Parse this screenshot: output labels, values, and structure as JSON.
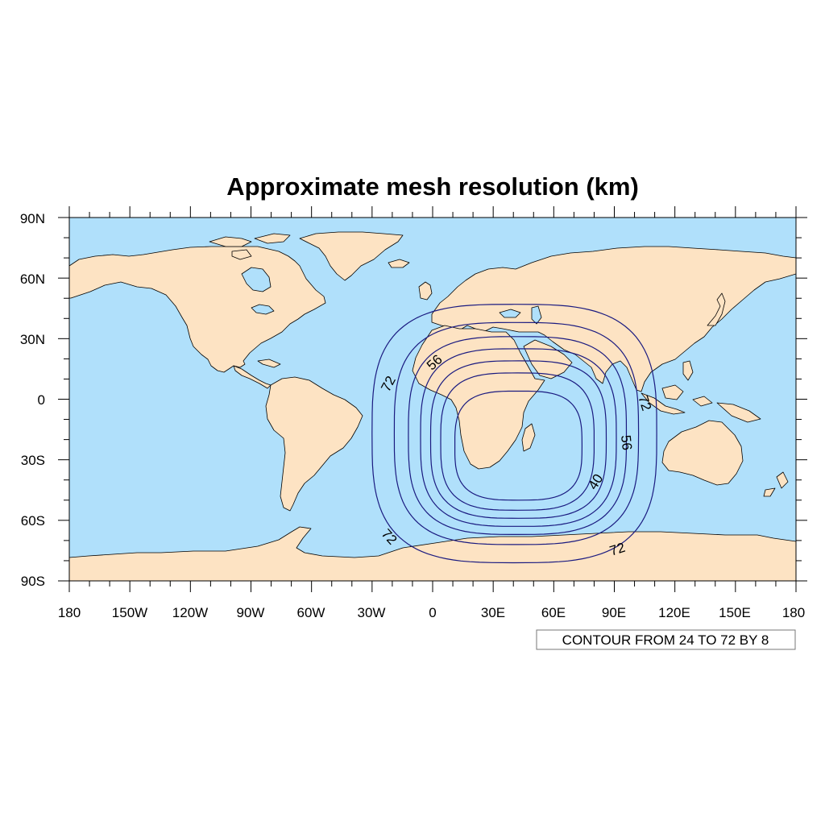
{
  "title": "Approximate mesh resolution (km)",
  "colors": {
    "ocean": "#b0e0fb",
    "land": "#fde3c3",
    "coast": "#000000",
    "contour": "#1a1a80"
  },
  "lat_labels": [
    "90N",
    "60N",
    "30N",
    "0",
    "30S",
    "60S",
    "90S"
  ],
  "lon_labels": [
    "180",
    "150W",
    "120W",
    "90W",
    "60W",
    "30W",
    "0",
    "30E",
    "60E",
    "90E",
    "120E",
    "150E",
    "180"
  ],
  "contour_info": "CONTOUR FROM 24 TO 72 BY 8",
  "contour_labels": [
    "72",
    "56",
    "72",
    "56",
    "40",
    "72",
    "72"
  ],
  "map_data": {
    "projection": "cylindrical-equidistant",
    "lon_range": [
      -180,
      180
    ],
    "lat_range": [
      -90,
      90
    ],
    "contour_center": {
      "lon": 40,
      "lat": -30
    },
    "contour_levels": [
      {
        "value": 24,
        "lon_min": 11,
        "lon_max": 74,
        "lat_min": -50,
        "lat_max": 4
      },
      {
        "value": 32,
        "lon_min": 4,
        "lon_max": 80,
        "lat_min": -55,
        "lat_max": 13
      },
      {
        "value": 40,
        "lon_min": -1,
        "lon_max": 86,
        "lat_min": -59,
        "lat_max": 19
      },
      {
        "value": 48,
        "lon_min": -6,
        "lon_max": 91,
        "lat_min": -63,
        "lat_max": 25
      },
      {
        "value": 56,
        "lon_min": -12,
        "lon_max": 96,
        "lat_min": -67,
        "lat_max": 31
      },
      {
        "value": 64,
        "lon_min": -19,
        "lon_max": 102,
        "lat_min": -72,
        "lat_max": 38
      },
      {
        "value": 72,
        "lon_min": -30,
        "lon_max": 111,
        "lat_min": -81,
        "lat_max": 47
      }
    ]
  }
}
